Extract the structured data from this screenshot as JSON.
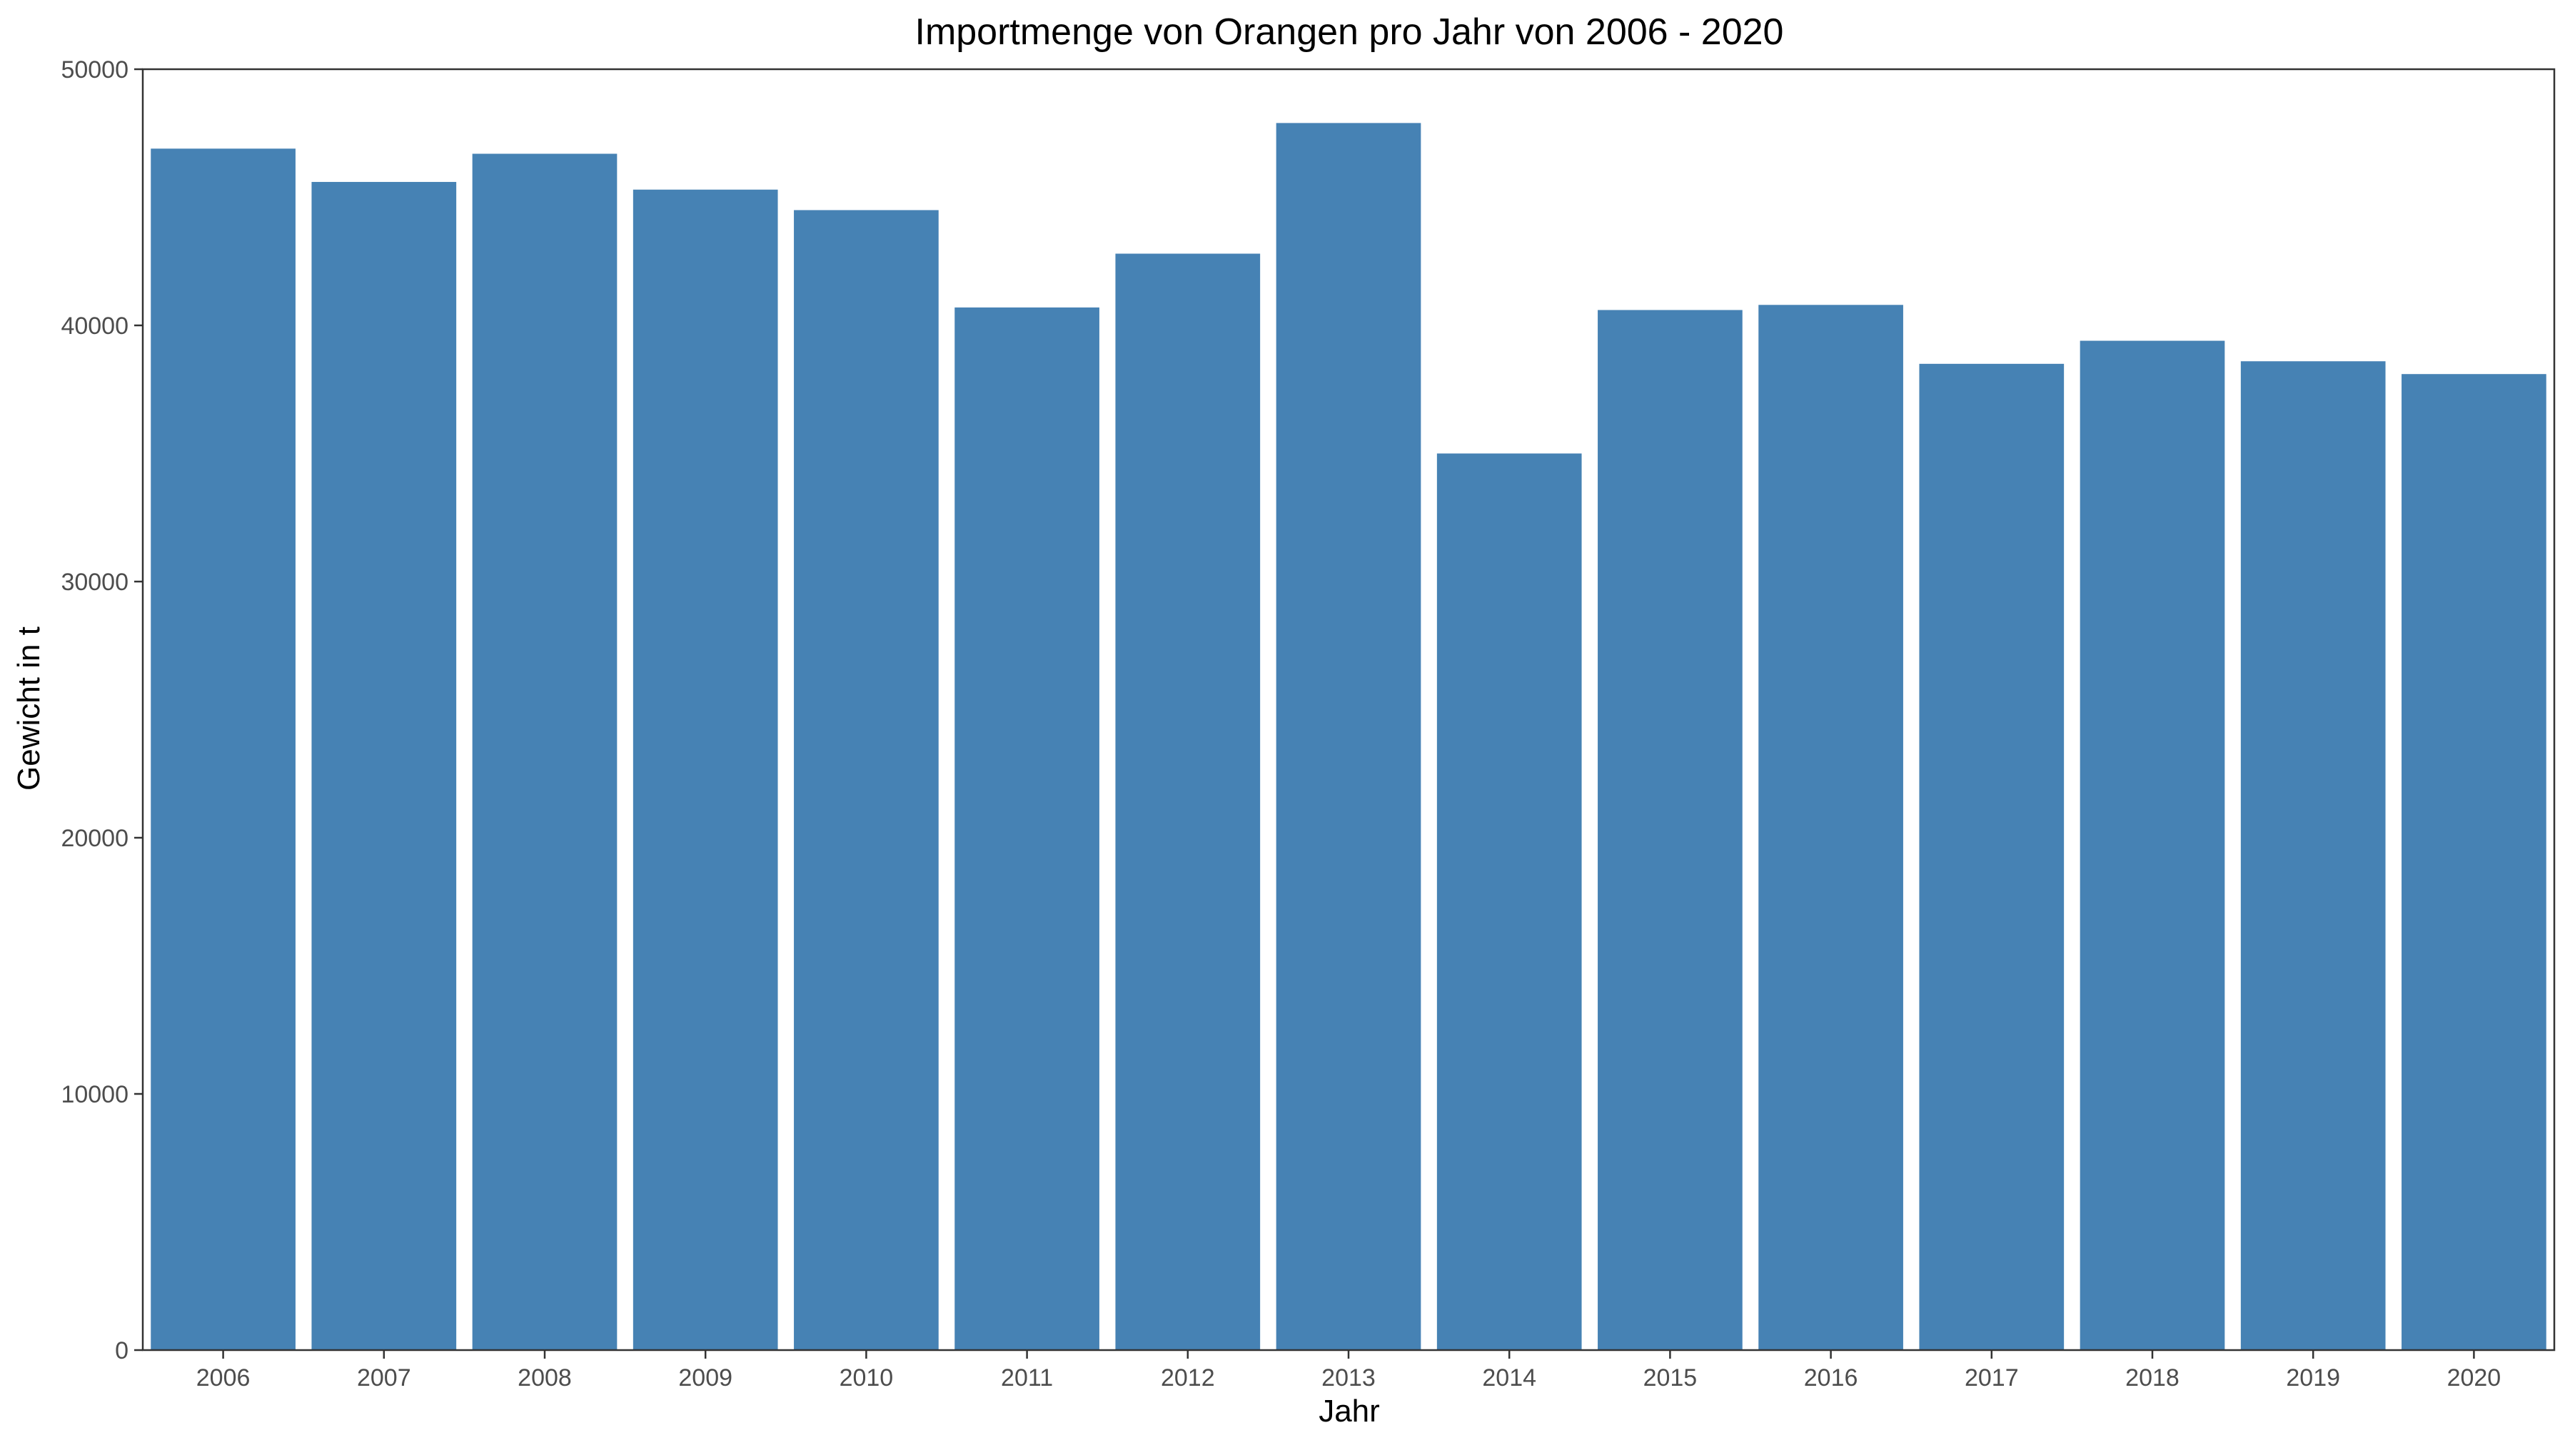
{
  "chart_data": {
    "type": "bar",
    "title": "Importmenge von Orangen pro Jahr von 2006 - 2020",
    "xlabel": "Jahr",
    "ylabel": "Gewicht in t",
    "categories": [
      "2006",
      "2007",
      "2008",
      "2009",
      "2010",
      "2011",
      "2012",
      "2013",
      "2014",
      "2015",
      "2016",
      "2017",
      "2018",
      "2019",
      "2020"
    ],
    "values": [
      46900,
      45600,
      46700,
      45300,
      44500,
      40700,
      42800,
      47900,
      35000,
      40600,
      40800,
      38500,
      39400,
      38600,
      38100
    ],
    "ylim": [
      0,
      50000
    ],
    "yticks": [
      0,
      10000,
      20000,
      30000,
      40000,
      50000
    ],
    "ytick_labels": [
      "0",
      "10000",
      "20000",
      "30000",
      "40000",
      "50000"
    ],
    "grid": false,
    "legend": "none",
    "bar_color": "#4682B4"
  }
}
